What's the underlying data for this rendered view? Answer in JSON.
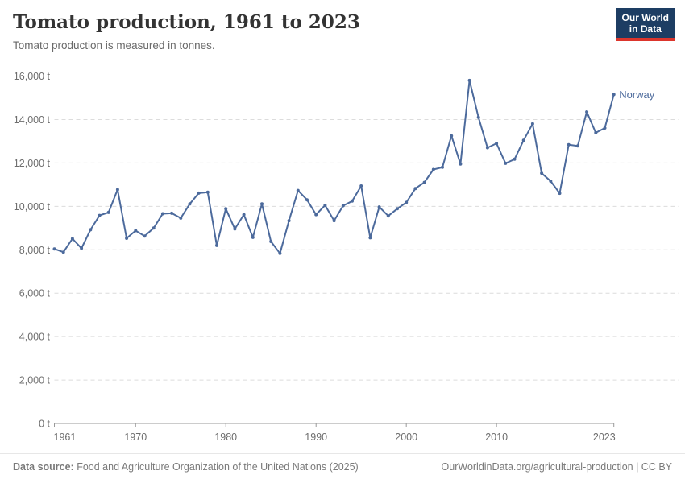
{
  "header": {
    "title": "Tomato production, 1961 to 2023",
    "subtitle": "Tomato production is measured in tonnes.",
    "logo": {
      "line1": "Our World",
      "line2": "in Data"
    }
  },
  "chart_data": {
    "type": "line",
    "title": "Tomato production, 1961 to 2023",
    "unit": "tonnes",
    "xlim": [
      1961,
      2023
    ],
    "ylim": [
      0,
      16000
    ],
    "grid": "dashed-horizontal",
    "legend_position": "end-of-line",
    "yticks": [
      0,
      2000,
      4000,
      6000,
      8000,
      10000,
      12000,
      14000,
      16000
    ],
    "ytick_labels": [
      "0 t",
      "2,000 t",
      "4,000 t",
      "6,000 t",
      "8,000 t",
      "10,000 t",
      "12,000 t",
      "14,000 t",
      "16,000 t"
    ],
    "xticks": [
      1961,
      1970,
      1980,
      1990,
      2000,
      2010,
      2023
    ],
    "xtick_labels": [
      "1961",
      "1970",
      "1980",
      "1990",
      "2000",
      "2010",
      "2023"
    ],
    "series": [
      {
        "name": "Norway",
        "color": "#4c6a9c",
        "x_start": 1961,
        "values": [
          8040,
          7890,
          8510,
          8070,
          8920,
          9580,
          9720,
          10770,
          8530,
          8880,
          8630,
          9000,
          9660,
          9680,
          9460,
          10110,
          10610,
          10650,
          8200,
          9890,
          8960,
          9620,
          8570,
          10110,
          8380,
          7830,
          9340,
          10730,
          10300,
          9620,
          10050,
          9340,
          10030,
          10240,
          10940,
          8550,
          9970,
          9560,
          9890,
          10180,
          10820,
          11100,
          11700,
          11800,
          13250,
          11950,
          15800,
          14100,
          12700,
          12900,
          11980,
          12170,
          13040,
          13800,
          11530,
          11160,
          10600,
          12840,
          12780,
          14350,
          13390,
          13610,
          15150
        ]
      }
    ]
  },
  "footer": {
    "source_label": "Data source:",
    "source_text": " Food and Agriculture Organization of the United Nations (2025)",
    "link_text": "OurWorldinData.org/agricultural-production | CC BY"
  },
  "colors": {
    "series_blue": "#4c6a9c",
    "logo_background": "#1d3d63",
    "logo_accent_red": "#dc352c",
    "grid_gray": "#dcdcdc",
    "axis_gray": "#999999",
    "tick_text_gray": "#6e6e6e"
  }
}
